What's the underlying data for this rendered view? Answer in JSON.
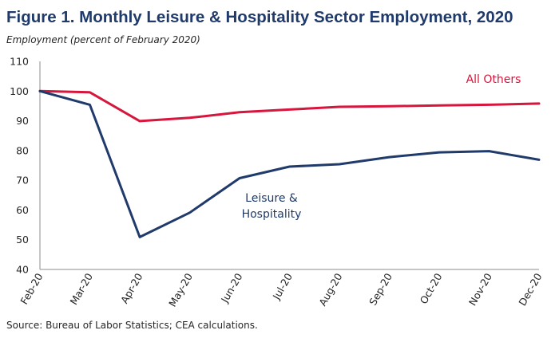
{
  "chart_data": {
    "type": "line",
    "title": "Figure 1. Monthly Leisure & Hospitality Sector Employment, 2020",
    "ylabel": "Employment (percent of February 2020)",
    "xlabel": "",
    "categories": [
      "Feb-20",
      "Mar-20",
      "Apr-20",
      "May-20",
      "Jun-20",
      "Jul-20",
      "Aug-20",
      "Sep-20",
      "Oct-20",
      "Nov-20",
      "Dec-20"
    ],
    "ylim": [
      40,
      110
    ],
    "yticks": [
      40,
      50,
      60,
      70,
      80,
      90,
      100,
      110
    ],
    "grid": false,
    "series": [
      {
        "name": "All Others",
        "label_lines": [
          "All Others"
        ],
        "color": "#d6163c",
        "values": [
          100,
          99.6,
          89.9,
          91.0,
          92.9,
          93.8,
          94.7,
          94.9,
          95.2,
          95.4,
          95.8
        ]
      },
      {
        "name": "Leisure & Hospitality",
        "label_lines": [
          "Leisure &",
          "Hospitality"
        ],
        "color": "#1f3a6b",
        "values": [
          100,
          95.4,
          50.9,
          59.1,
          70.7,
          74.6,
          75.4,
          77.8,
          79.4,
          79.8,
          76.9
        ]
      }
    ],
    "source": "Source: Bureau of Labor Statistics; CEA calculations."
  }
}
